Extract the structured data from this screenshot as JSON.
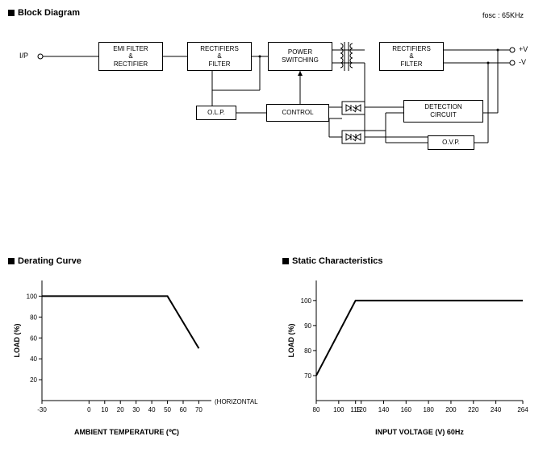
{
  "blockDiagram": {
    "title": "Block Diagram",
    "note": "fosc : 65KHz",
    "inputLabel": "I/P",
    "posVLabel": "+V",
    "negVLabel": "-V",
    "horizNote": "(HORIZONTAL)",
    "blocks": {
      "emi": "EMI  FILTER\n&\nRECTIFIER",
      "rect1": "RECTIFIERS\n&\nFILTER",
      "power": "POWER\nSWITCHING",
      "rect2": "RECTIFIERS\n&\nFILTER",
      "olp": "O.L.P.",
      "control": "CONTROL",
      "detect": "DETECTION\nCIRCUIT",
      "ovp": "O.V.P."
    }
  },
  "deratingCurve": {
    "title": "Derating Curve",
    "ylabel": "LOAD (%)",
    "xlabel": "AMBIENT TEMPERATURE (℃)",
    "xticks": [
      -30,
      0,
      10,
      20,
      30,
      40,
      50,
      60,
      70
    ],
    "yticks": [
      20,
      40,
      60,
      80,
      100
    ],
    "xlim": [
      -30,
      78
    ],
    "ylim": [
      0,
      115
    ],
    "points": [
      [
        -30,
        100
      ],
      [
        50,
        100
      ],
      [
        70,
        50
      ]
    ],
    "line_color": "#000000",
    "line_width": 2,
    "tick_fontsize": 8,
    "label_fontsize": 9
  },
  "staticChar": {
    "title": "Static Characteristics",
    "ylabel": "LOAD (%)",
    "xlabel": "INPUT VOLTAGE (V) 60Hz",
    "xticks": [
      80,
      100,
      115,
      120,
      140,
      160,
      180,
      200,
      220,
      240,
      264
    ],
    "yticks": [
      70,
      80,
      90,
      100
    ],
    "xlim": [
      80,
      264
    ],
    "ylim": [
      60,
      108
    ],
    "points": [
      [
        80,
        70
      ],
      [
        115,
        100
      ],
      [
        264,
        100
      ]
    ],
    "line_color": "#000000",
    "line_width": 2,
    "tick_fontsize": 8,
    "label_fontsize": 9
  }
}
